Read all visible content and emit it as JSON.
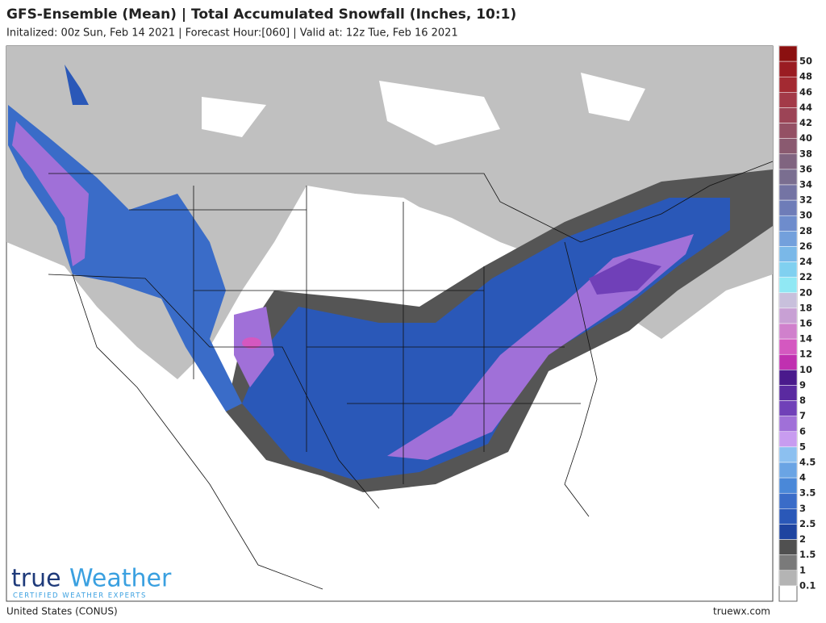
{
  "header": {
    "title": "GFS-Ensemble (Mean) | Total Accumulated Snowfall (Inches, 10:1)",
    "subtitle": "Initalized: 00z Sun, Feb 14 2021 | Forecast Hour:[060] | Valid at: 12z Tue, Feb 16 2021"
  },
  "logo": {
    "brand_left": "true",
    "brand_right": "Weather",
    "tagline": "CERTIFIED WEATHER EXPERTS"
  },
  "footer": {
    "region": "United States (CONUS)",
    "site": "truewx.com"
  },
  "legend": {
    "levels": [
      {
        "value": 50,
        "color": "#8b1010"
      },
      {
        "value": 48,
        "color": "#9a1c22"
      },
      {
        "value": 46,
        "color": "#a32a32"
      },
      {
        "value": 44,
        "color": "#a33a48"
      },
      {
        "value": 42,
        "color": "#9c4456"
      },
      {
        "value": 40,
        "color": "#945064"
      },
      {
        "value": 38,
        "color": "#8a5a70"
      },
      {
        "value": 36,
        "color": "#806480"
      },
      {
        "value": 34,
        "color": "#7a6e90"
      },
      {
        "value": 32,
        "color": "#7474a4"
      },
      {
        "value": 30,
        "color": "#6e7cb8"
      },
      {
        "value": 28,
        "color": "#6e8ccc"
      },
      {
        "value": 26,
        "color": "#73a0dc"
      },
      {
        "value": 24,
        "color": "#7ab8e8"
      },
      {
        "value": 22,
        "color": "#80d0f0"
      },
      {
        "value": 20,
        "color": "#90e8f4"
      },
      {
        "value": 18,
        "color": "#c8c0dc"
      },
      {
        "value": 16,
        "color": "#c8a0d4"
      },
      {
        "value": 14,
        "color": "#d080cc"
      },
      {
        "value": 12,
        "color": "#d458c0"
      },
      {
        "value": 10,
        "color": "#c030b0"
      },
      {
        "value": 9,
        "color": "#4a1a8c"
      },
      {
        "value": 8,
        "color": "#5a2aa0"
      },
      {
        "value": 7,
        "color": "#7040b8"
      },
      {
        "value": 6,
        "color": "#a070d8"
      },
      {
        "value": 5,
        "color": "#c89cf0"
      },
      {
        "value": 4.5,
        "color": "#8cc0f0"
      },
      {
        "value": 4,
        "color": "#6aa4e4"
      },
      {
        "value": 3.5,
        "color": "#4a88d8"
      },
      {
        "value": 3,
        "color": "#3a6cc8"
      },
      {
        "value": 2.5,
        "color": "#2a58b8"
      },
      {
        "value": 2,
        "color": "#1e44a0"
      },
      {
        "value": 1.5,
        "color": "#505050"
      },
      {
        "value": 1,
        "color": "#7a7a7a"
      },
      {
        "value": 0.1,
        "color": "#b4b4b4"
      }
    ]
  }
}
